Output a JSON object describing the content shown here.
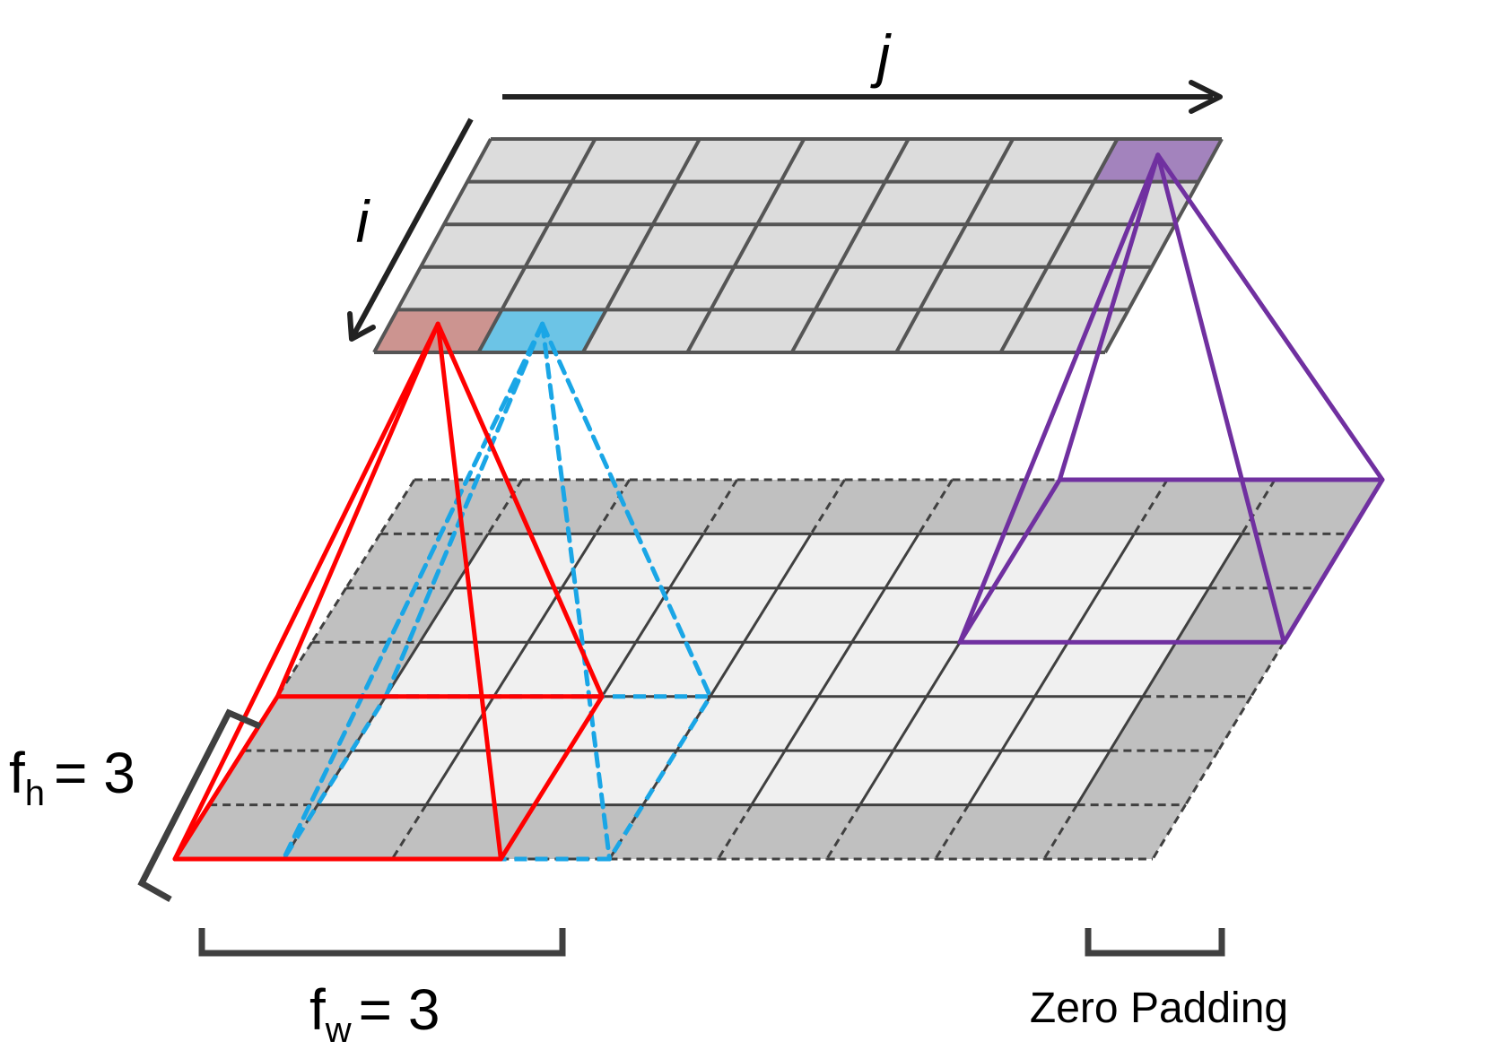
{
  "labels": {
    "axis_j": "j",
    "axis_i": "i",
    "fh_base": "f",
    "fh_sub": "h",
    "fh_value": "= 3",
    "fw_base": "f",
    "fw_sub": "w",
    "fw_value": "= 3",
    "zero_padding": "Zero Padding"
  },
  "output_grid": {
    "rows": 5,
    "cols": 7
  },
  "input_grid": {
    "rows": 7,
    "cols": 9,
    "zero_padding": 1
  },
  "filter": {
    "fh": 3,
    "fw": 3
  },
  "highlighted_output_cells": [
    {
      "name": "red",
      "row": 4,
      "col": 0
    },
    {
      "name": "blue",
      "row": 4,
      "col": 1
    },
    {
      "name": "purple",
      "row": 0,
      "col": 6
    }
  ],
  "colors": {
    "output_cell": "#dcdcdc",
    "output_line": "#555555",
    "input_inner": "#f0f0f0",
    "input_padding": "#c0c0c0",
    "input_line": "#404040",
    "red": "#ff0000",
    "red_fill": "#cc9490",
    "blue": "#1aa6e6",
    "blue_fill": "#6cc4e6",
    "purple": "#7030a0",
    "purple_fill": "#a383bd",
    "arrow": "#222222",
    "bracket": "#404040"
  }
}
